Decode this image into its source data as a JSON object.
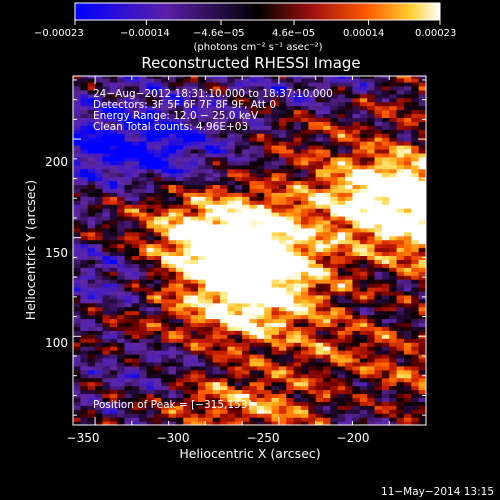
{
  "chart_data": {
    "type": "heatmap",
    "title": "Reconstructed RHESSI Image",
    "xlabel": "Heliocentric X (arcsec)",
    "ylabel": "Heliocentric Y (arcsec)",
    "xlim": [
      -356,
      -260
    ],
    "ylim": [
      55,
      232
    ],
    "x_ticks": [
      "−350",
      "−300",
      "−250",
      "−200"
    ],
    "x_tick_values": [
      -350,
      -300,
      -250,
      -200
    ],
    "y_ticks": [
      "100",
      "150",
      "200"
    ],
    "y_tick_values": [
      100,
      150,
      200
    ],
    "colorbar": {
      "range": [
        -0.00023,
        0.00023
      ],
      "tick_labels": [
        "−0.00023",
        "−0.00014",
        "−4.6e−05",
        "4.6e−05",
        "0.00014",
        "0.00023"
      ],
      "tick_values": [
        -0.00023,
        -0.00014,
        -4.6e-05,
        4.6e-05,
        0.00014,
        0.00023
      ],
      "unit": "(photons cm⁻² s⁻¹ asec⁻²)"
    },
    "annotations": {
      "time": "24−Aug−2012 18:31:10.000 to 18:37:10.000",
      "detectors": "Detectors: 3F 5F 6F 7F 8F 9F, Att 0",
      "energy": "Energy Range: 12.0 − 25.0 keV",
      "clean": "Clean     Total counts: 4.96E+03",
      "peak": "Position of Peak = [−315,153]"
    },
    "peak": [
      -315,
      153
    ],
    "footer_date": "11−May−2014 13:15"
  }
}
